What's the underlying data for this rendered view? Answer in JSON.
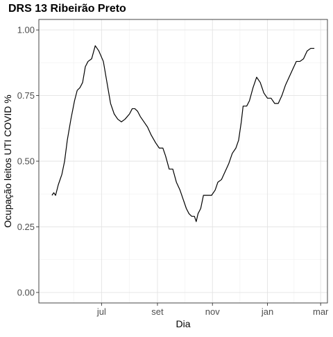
{
  "chart_data": {
    "type": "line",
    "title": "DRS 13 Ribeirão Preto",
    "xlabel": "Dia",
    "ylabel": "Ocupação leitos UTI COVID %",
    "x_ticks": [
      "jul",
      "set",
      "nov",
      "jan",
      "mar"
    ],
    "y_ticks": [
      "0.00",
      "0.25",
      "0.50",
      "0.75",
      "1.00"
    ],
    "ylim": [
      -0.04,
      1.04
    ],
    "grid": true,
    "legend": "none",
    "series": [
      {
        "color": "#000000",
        "points": [
          [
            "2020-05-07",
            0.37
          ],
          [
            "2020-05-09",
            0.38
          ],
          [
            "2020-05-11",
            0.37
          ],
          [
            "2020-05-14",
            0.41
          ],
          [
            "2020-05-18",
            0.45
          ],
          [
            "2020-05-21",
            0.5
          ],
          [
            "2020-05-24",
            0.58
          ],
          [
            "2020-05-28",
            0.66
          ],
          [
            "2020-06-01",
            0.73
          ],
          [
            "2020-06-04",
            0.77
          ],
          [
            "2020-06-07",
            0.78
          ],
          [
            "2020-06-10",
            0.8
          ],
          [
            "2020-06-13",
            0.86
          ],
          [
            "2020-06-16",
            0.88
          ],
          [
            "2020-06-20",
            0.89
          ],
          [
            "2020-06-24",
            0.94
          ],
          [
            "2020-06-28",
            0.92
          ],
          [
            "2020-07-03",
            0.88
          ],
          [
            "2020-07-07",
            0.8
          ],
          [
            "2020-07-11",
            0.72
          ],
          [
            "2020-07-15",
            0.68
          ],
          [
            "2020-07-19",
            0.66
          ],
          [
            "2020-07-23",
            0.65
          ],
          [
            "2020-07-27",
            0.66
          ],
          [
            "2020-08-01",
            0.68
          ],
          [
            "2020-08-04",
            0.7
          ],
          [
            "2020-08-07",
            0.7
          ],
          [
            "2020-08-10",
            0.69
          ],
          [
            "2020-08-13",
            0.67
          ],
          [
            "2020-08-17",
            0.65
          ],
          [
            "2020-08-21",
            0.63
          ],
          [
            "2020-08-25",
            0.6
          ],
          [
            "2020-08-30",
            0.57
          ],
          [
            "2020-09-03",
            0.55
          ],
          [
            "2020-09-07",
            0.55
          ],
          [
            "2020-09-10",
            0.52
          ],
          [
            "2020-09-14",
            0.47
          ],
          [
            "2020-09-18",
            0.47
          ],
          [
            "2020-09-22",
            0.42
          ],
          [
            "2020-09-26",
            0.39
          ],
          [
            "2020-09-30",
            0.35
          ],
          [
            "2020-10-03",
            0.32
          ],
          [
            "2020-10-06",
            0.3
          ],
          [
            "2020-10-09",
            0.29
          ],
          [
            "2020-10-12",
            0.29
          ],
          [
            "2020-10-14",
            0.27
          ],
          [
            "2020-10-16",
            0.3
          ],
          [
            "2020-10-19",
            0.32
          ],
          [
            "2020-10-22",
            0.37
          ],
          [
            "2020-10-25",
            0.37
          ],
          [
            "2020-10-28",
            0.37
          ],
          [
            "2020-10-31",
            0.37
          ],
          [
            "2020-11-04",
            0.39
          ],
          [
            "2020-11-07",
            0.42
          ],
          [
            "2020-11-11",
            0.43
          ],
          [
            "2020-11-15",
            0.46
          ],
          [
            "2020-11-19",
            0.49
          ],
          [
            "2020-11-23",
            0.53
          ],
          [
            "2020-11-27",
            0.55
          ],
          [
            "2020-11-30",
            0.58
          ],
          [
            "2020-12-03",
            0.65
          ],
          [
            "2020-12-05",
            0.71
          ],
          [
            "2020-12-09",
            0.71
          ],
          [
            "2020-12-12",
            0.73
          ],
          [
            "2020-12-16",
            0.78
          ],
          [
            "2020-12-20",
            0.82
          ],
          [
            "2020-12-24",
            0.8
          ],
          [
            "2020-12-28",
            0.76
          ],
          [
            "2021-01-01",
            0.74
          ],
          [
            "2021-01-05",
            0.74
          ],
          [
            "2021-01-09",
            0.72
          ],
          [
            "2021-01-13",
            0.72
          ],
          [
            "2021-01-17",
            0.75
          ],
          [
            "2021-01-21",
            0.79
          ],
          [
            "2021-01-25",
            0.82
          ],
          [
            "2021-01-29",
            0.85
          ],
          [
            "2021-02-02",
            0.88
          ],
          [
            "2021-02-06",
            0.88
          ],
          [
            "2021-02-10",
            0.89
          ],
          [
            "2021-02-14",
            0.92
          ],
          [
            "2021-02-18",
            0.93
          ],
          [
            "2021-02-22",
            0.93
          ]
        ]
      }
    ]
  }
}
